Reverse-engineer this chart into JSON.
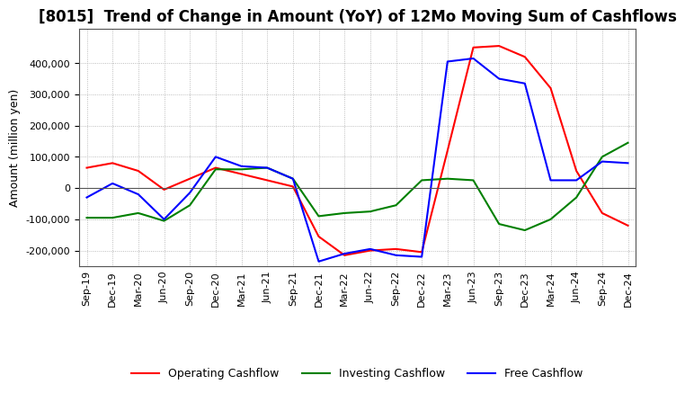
{
  "title": "[8015]  Trend of Change in Amount (YoY) of 12Mo Moving Sum of Cashflows",
  "ylabel": "Amount (million yen)",
  "x_labels": [
    "Sep-19",
    "Dec-19",
    "Mar-20",
    "Jun-20",
    "Sep-20",
    "Dec-20",
    "Mar-21",
    "Jun-21",
    "Sep-21",
    "Dec-21",
    "Mar-22",
    "Jun-22",
    "Sep-22",
    "Dec-22",
    "Mar-23",
    "Jun-23",
    "Sep-23",
    "Dec-23",
    "Mar-24",
    "Jun-24",
    "Sep-24",
    "Dec-24"
  ],
  "operating": [
    65000,
    80000,
    55000,
    -5000,
    30000,
    65000,
    45000,
    25000,
    5000,
    -155000,
    -215000,
    -200000,
    -195000,
    -205000,
    120000,
    450000,
    455000,
    420000,
    320000,
    55000,
    -80000,
    -120000
  ],
  "investing": [
    -95000,
    -95000,
    -80000,
    -105000,
    -55000,
    60000,
    60000,
    65000,
    30000,
    -90000,
    -80000,
    -75000,
    -55000,
    25000,
    30000,
    25000,
    -115000,
    -135000,
    -100000,
    -30000,
    100000,
    145000
  ],
  "free": [
    -30000,
    15000,
    -20000,
    -100000,
    -15000,
    100000,
    70000,
    65000,
    30000,
    -235000,
    -210000,
    -195000,
    -215000,
    -220000,
    405000,
    415000,
    350000,
    335000,
    25000,
    25000,
    85000,
    80000
  ],
  "ylim": [
    -250000,
    510000
  ],
  "yticks": [
    -200000,
    -100000,
    0,
    100000,
    200000,
    300000,
    400000
  ],
  "operating_color": "#ff0000",
  "investing_color": "#008000",
  "free_color": "#0000ff",
  "background_color": "#ffffff",
  "grid_color": "#aaaaaa",
  "title_fontsize": 12,
  "label_fontsize": 9,
  "tick_fontsize": 8,
  "legend_fontsize": 9
}
